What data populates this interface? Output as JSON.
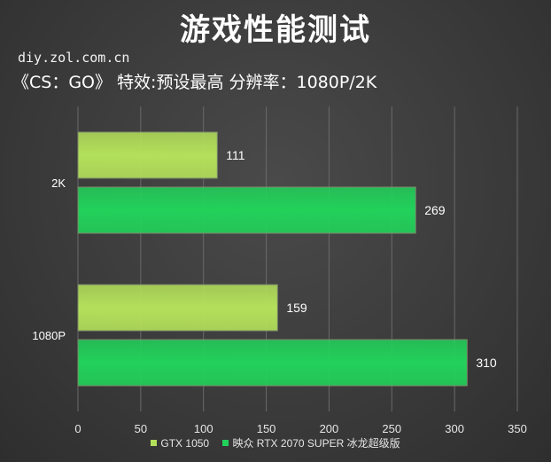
{
  "header": {
    "title": "游戏性能测试",
    "source": "diy.zol.com.cn",
    "subtitle": "《CS：GO》  特效:预设最高  分辨率：1080P/2K"
  },
  "colors": {
    "series_0": "#b3e05a",
    "series_1": "#22d15a",
    "grid": "#6a6a6a"
  },
  "chart_data": {
    "type": "bar",
    "orientation": "horizontal",
    "categories": [
      "2K",
      "1080P"
    ],
    "series": [
      {
        "name": "GTX 1050",
        "values": [
          111,
          159
        ]
      },
      {
        "name": "映众 RTX 2070 SUPER 冰龙超级版",
        "values": [
          269,
          310
        ]
      }
    ],
    "xlim": [
      0,
      350
    ],
    "xticks": [
      "0",
      "50",
      "100",
      "150",
      "200",
      "250",
      "300",
      "350"
    ],
    "grid": true,
    "legend": "bottom"
  }
}
